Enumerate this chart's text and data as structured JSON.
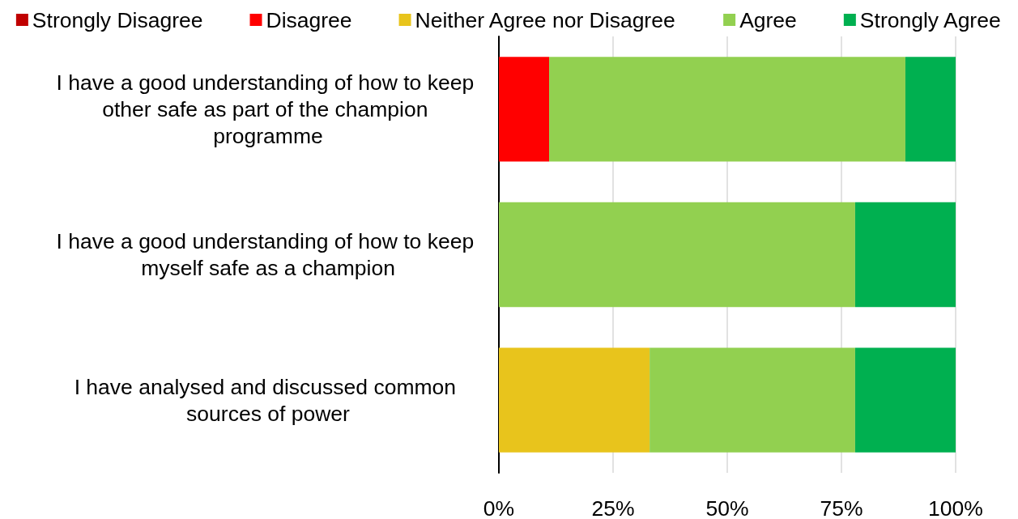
{
  "chart_data": {
    "type": "bar",
    "orientation": "horizontal",
    "stacked": true,
    "categories": [
      "I have a good understanding of how to keep other safe as part of the champion programme",
      "I have a good understanding of how to keep myself safe as a champion",
      "I have analysed and discussed common sources of power"
    ],
    "series": [
      {
        "name": "Strongly Disagree",
        "color": "#c00000",
        "values": [
          0,
          0,
          0
        ]
      },
      {
        "name": "Disagree",
        "color": "#ff0000",
        "values": [
          11,
          0,
          0
        ]
      },
      {
        "name": "Neither Agree nor Disagree",
        "color": "#e8c41c",
        "values": [
          0,
          0,
          33
        ]
      },
      {
        "name": "Agree",
        "color": "#92d050",
        "values": [
          78,
          78,
          45
        ]
      },
      {
        "name": "Strongly Agree",
        "color": "#00b050",
        "values": [
          11,
          22,
          22
        ]
      }
    ],
    "xlim": [
      0,
      100
    ],
    "xticks": [
      {
        "value": 0,
        "label": "0%"
      },
      {
        "value": 25,
        "label": "25%"
      },
      {
        "value": 50,
        "label": "50%"
      },
      {
        "value": 75,
        "label": "75%"
      },
      {
        "value": 100,
        "label": "100%"
      }
    ],
    "grid": "x",
    "legend": "top"
  }
}
